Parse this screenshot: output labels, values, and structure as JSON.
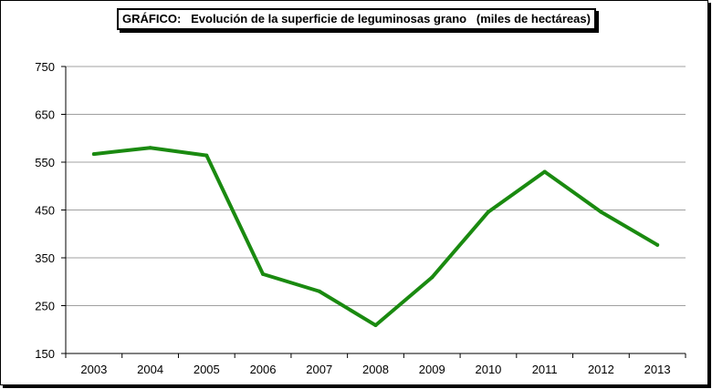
{
  "chart_data": {
    "type": "line",
    "title": "GRÁFICO:   Evolución de la superficie de leguminosas grano   (miles de hectáreas)",
    "xlabel": "",
    "ylabel": "",
    "categories": [
      "2003",
      "2004",
      "2005",
      "2006",
      "2007",
      "2008",
      "2009",
      "2010",
      "2011",
      "2012",
      "2013"
    ],
    "series": [
      {
        "values": [
          567,
          580,
          564,
          316,
          280,
          209,
          309,
          446,
          530,
          446,
          377
        ],
        "color": "#1a8a10"
      }
    ],
    "ylim": [
      150,
      750
    ],
    "yticks": [
      150,
      250,
      350,
      450,
      550,
      650,
      750
    ],
    "grid": true,
    "legend": "none"
  }
}
